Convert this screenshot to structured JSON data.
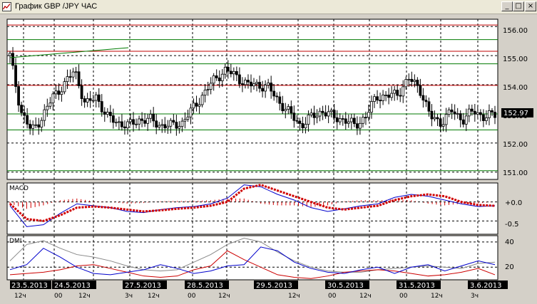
{
  "window": {
    "title": "График GBP /JPY ЧАС",
    "controls": {
      "minimize": "_",
      "maximize": "□",
      "close": "×"
    }
  },
  "price_axis": {
    "labels": [
      "156.00",
      "155.00",
      "154.00",
      "153.00",
      "152.00",
      "151.00"
    ],
    "current_price": "152.97"
  },
  "macd": {
    "title": "MACD",
    "labels": [
      "+0.0",
      "-0.5"
    ]
  },
  "dmi": {
    "title": "DMI",
    "labels": [
      "40",
      "20"
    ]
  },
  "dates": [
    "23.5.2013",
    "24.5.2013",
    "27.5.2013",
    "28.5.2013",
    "29.5.2013",
    "30.5.2013",
    "31.5.2013",
    "3.6.2013"
  ],
  "hours": [
    "12ч",
    "00",
    "12ч",
    "3ч",
    "12ч",
    "00",
    "12ч",
    "12ч",
    "00",
    "12ч",
    "00",
    "12ч",
    "3ч"
  ],
  "colors": {
    "background": "#ffffff",
    "candles": "#000000",
    "support_lines": "#007a00",
    "resistance_lines": "#c00000",
    "macd_signal": "#d00000",
    "dmi_plus": "#0000cc",
    "dmi_minus": "#cc0000",
    "adx": "#888888"
  },
  "chart_data": {
    "type": "candlestick",
    "symbol": "GBP/JPY",
    "timeframe": "hourly",
    "ylim": [
      150.75,
      156.25
    ],
    "current": 152.97,
    "x_labels": [
      "23.5.2013",
      "24.5.2013",
      "27.5.2013",
      "28.5.2013",
      "29.5.2013",
      "30.5.2013",
      "31.5.2013",
      "3.6.2013"
    ],
    "close_path": [
      155.0,
      153.1,
      152.4,
      152.9,
      153.6,
      154.0,
      154.5,
      153.3,
      153.6,
      152.9,
      152.7,
      152.6,
      152.8,
      152.8,
      152.6,
      152.6,
      152.7,
      153.2,
      153.7,
      154.2,
      154.5,
      154.3,
      154.0,
      154.0,
      153.9,
      153.4,
      153.0,
      152.6,
      152.9,
      153.1,
      152.9,
      152.8,
      152.6,
      152.9,
      153.6,
      153.6,
      153.7,
      154.2,
      153.9,
      152.9,
      152.7,
      153.1,
      152.8,
      153.1,
      152.9,
      152.97
    ],
    "horizontal_levels": {
      "resistance": [
        156.05,
        155.15,
        153.98
      ],
      "support": [
        155.55,
        154.72,
        153.0,
        152.45,
        151.05
      ]
    },
    "macd": {
      "ylim": [
        -0.85,
        0.5
      ],
      "signal": [
        -0.05,
        -0.45,
        -0.5,
        -0.35,
        -0.15,
        -0.12,
        -0.15,
        -0.2,
        -0.25,
        -0.22,
        -0.18,
        -0.15,
        -0.1,
        0.0,
        0.35,
        0.45,
        0.3,
        0.15,
        0.0,
        -0.15,
        -0.2,
        -0.15,
        -0.1,
        0.05,
        0.15,
        0.2,
        0.15,
        0.0,
        -0.08,
        -0.1
      ],
      "main": [
        -0.1,
        -0.65,
        -0.6,
        -0.3,
        -0.05,
        -0.1,
        -0.15,
        -0.25,
        -0.28,
        -0.2,
        -0.15,
        -0.12,
        -0.05,
        0.1,
        0.45,
        0.4,
        0.2,
        0.05,
        -0.15,
        -0.25,
        -0.18,
        -0.1,
        -0.05,
        0.12,
        0.2,
        0.15,
        0.05,
        -0.05,
        -0.12,
        -0.1
      ]
    },
    "dmi": {
      "ylim": [
        10,
        45
      ],
      "plus": [
        18,
        22,
        35,
        28,
        20,
        15,
        14,
        16,
        18,
        22,
        19,
        15,
        17,
        21,
        22,
        36,
        33,
        24,
        19,
        16,
        15,
        18,
        20,
        15,
        20,
        22,
        17,
        21,
        25,
        22
      ],
      "minus": [
        14,
        15,
        16,
        18,
        21,
        22,
        19,
        16,
        13,
        12,
        13,
        18,
        21,
        33,
        26,
        20,
        14,
        12,
        11,
        13,
        16,
        17,
        18,
        17,
        15,
        13,
        14,
        16,
        19,
        14
      ],
      "adx": [
        25,
        38,
        41,
        35,
        30,
        28,
        25,
        21,
        18,
        17,
        18,
        24,
        30,
        38,
        43,
        40,
        32,
        25,
        20,
        17,
        16,
        16,
        18,
        19,
        20,
        21,
        20,
        19,
        23,
        24
      ]
    }
  }
}
